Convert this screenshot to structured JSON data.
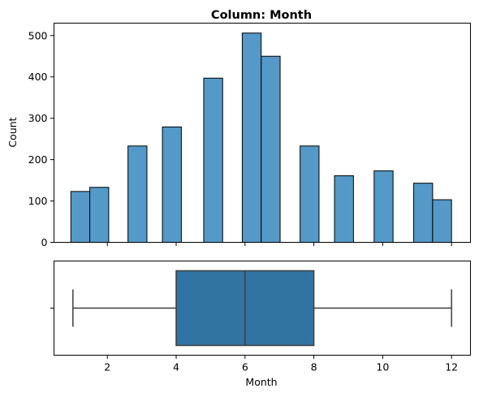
{
  "chart_data": [
    {
      "type": "bar",
      "title": "Column: Month",
      "xlabel": "",
      "ylabel": "Count",
      "ylim": [
        0,
        530
      ],
      "xlim": [
        0.45,
        12.55
      ],
      "yticks": [
        0,
        100,
        200,
        300,
        400,
        500
      ],
      "bins": [
        {
          "start": 0.94,
          "end": 1.49,
          "count": 123
        },
        {
          "start": 1.49,
          "end": 2.04,
          "count": 133
        },
        {
          "start": 2.6,
          "end": 3.15,
          "count": 233
        },
        {
          "start": 3.6,
          "end": 4.15,
          "count": 279
        },
        {
          "start": 4.8,
          "end": 5.35,
          "count": 397
        },
        {
          "start": 5.92,
          "end": 6.47,
          "count": 506
        },
        {
          "start": 6.47,
          "end": 7.02,
          "count": 450
        },
        {
          "start": 7.6,
          "end": 8.15,
          "count": 233
        },
        {
          "start": 8.6,
          "end": 9.15,
          "count": 161
        },
        {
          "start": 9.75,
          "end": 10.3,
          "count": 173
        },
        {
          "start": 10.9,
          "end": 11.45,
          "count": 143
        },
        {
          "start": 11.45,
          "end": 12.0,
          "count": 103
        }
      ],
      "bar_color": "#5499c7"
    },
    {
      "type": "box",
      "xlabel": "Month",
      "xlim": [
        0.45,
        12.55
      ],
      "xticks": [
        2,
        4,
        6,
        8,
        10,
        12
      ],
      "whisker_low": 1,
      "q1": 4,
      "median": 6,
      "q3": 8,
      "whisker_high": 12,
      "box_color": "#3274a1"
    }
  ]
}
